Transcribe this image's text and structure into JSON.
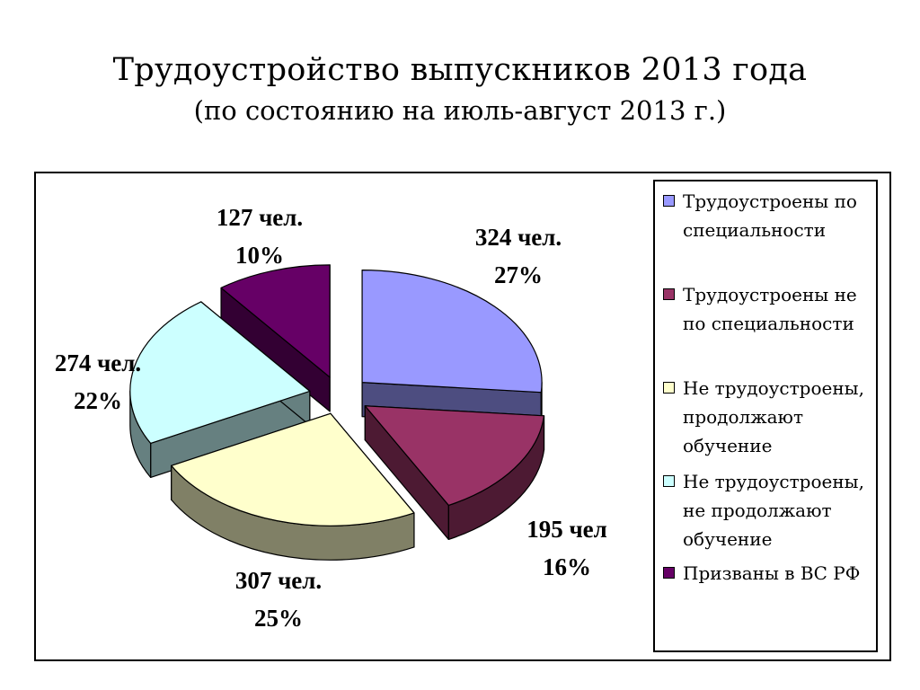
{
  "slide": {
    "title": "Трудоустройство выпускников 2013 года",
    "subtitle": "(по состоянию на июль-август 2013 г.)"
  },
  "chart_data": {
    "type": "pie",
    "title": "Трудоустройство выпускников 2013 года",
    "subtitle": "(по состоянию на июль-август 2013 г.)",
    "style": "3d-exploded",
    "legend_position": "right",
    "slices": [
      {
        "label": "Трудоустроены по специальности",
        "value": 324,
        "percent": 27,
        "value_label": "324 чел.",
        "percent_label": "27%",
        "color": "#9999ff",
        "side_color": "#4d4d80"
      },
      {
        "label": "Трудоустроены не по специальности",
        "value": 195,
        "percent": 16,
        "value_label": "195 чел",
        "percent_label": "16%",
        "color": "#993366",
        "side_color": "#4d1a33"
      },
      {
        "label": "Не трудоустроены, продолжают обучение",
        "value": 307,
        "percent": 25,
        "value_label": "307 чел.",
        "percent_label": "25%",
        "color": "#ffffcc",
        "side_color": "#808066"
      },
      {
        "label": "Не трудоустроены, не продолжают обучение",
        "value": 274,
        "percent": 22,
        "value_label": "274 чел.",
        "percent_label": "22%",
        "color": "#ccffff",
        "side_color": "#668080"
      },
      {
        "label": "Призваны в ВС РФ",
        "value": 127,
        "percent": 10,
        "value_label": "127 чел.",
        "percent_label": "10%",
        "color": "#660066",
        "side_color": "#330033"
      }
    ]
  }
}
